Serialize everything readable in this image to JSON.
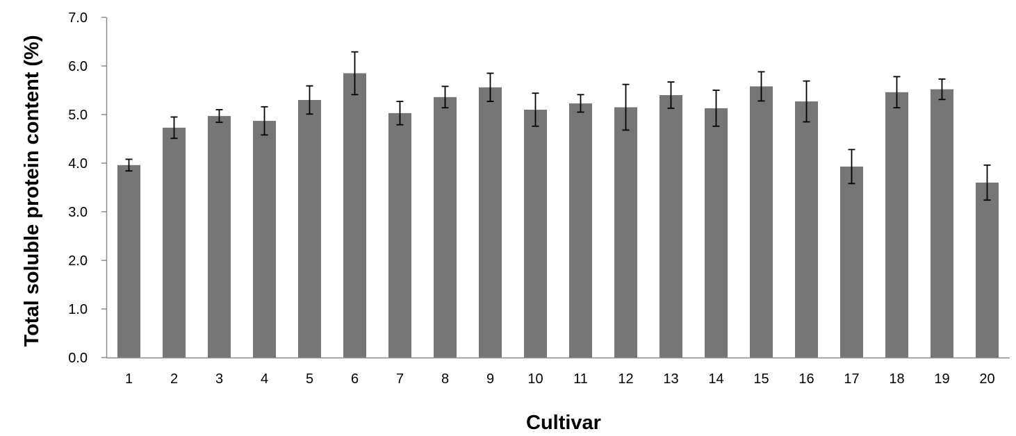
{
  "chart_data": {
    "type": "bar",
    "title": "",
    "xlabel": "Cultivar",
    "ylabel": "Total soluble protein content (%)",
    "ylim": [
      0,
      7
    ],
    "yticks": [
      "0.0",
      "1.0",
      "2.0",
      "3.0",
      "4.0",
      "5.0",
      "6.0",
      "7.0"
    ],
    "grid": false,
    "legend": "none",
    "categories": [
      "1",
      "2",
      "3",
      "4",
      "5",
      "6",
      "7",
      "8",
      "9",
      "10",
      "11",
      "12",
      "13",
      "14",
      "15",
      "16",
      "17",
      "18",
      "19",
      "20"
    ],
    "values": [
      3.96,
      4.73,
      4.97,
      4.87,
      5.3,
      5.85,
      5.03,
      5.36,
      5.56,
      5.1,
      5.23,
      5.15,
      5.4,
      5.13,
      5.58,
      5.27,
      3.93,
      5.46,
      5.52,
      3.6
    ],
    "error": [
      0.12,
      0.22,
      0.13,
      0.29,
      0.29,
      0.44,
      0.24,
      0.22,
      0.29,
      0.34,
      0.18,
      0.47,
      0.27,
      0.37,
      0.3,
      0.42,
      0.35,
      0.32,
      0.21,
      0.36
    ],
    "bar_color": "#767676"
  }
}
